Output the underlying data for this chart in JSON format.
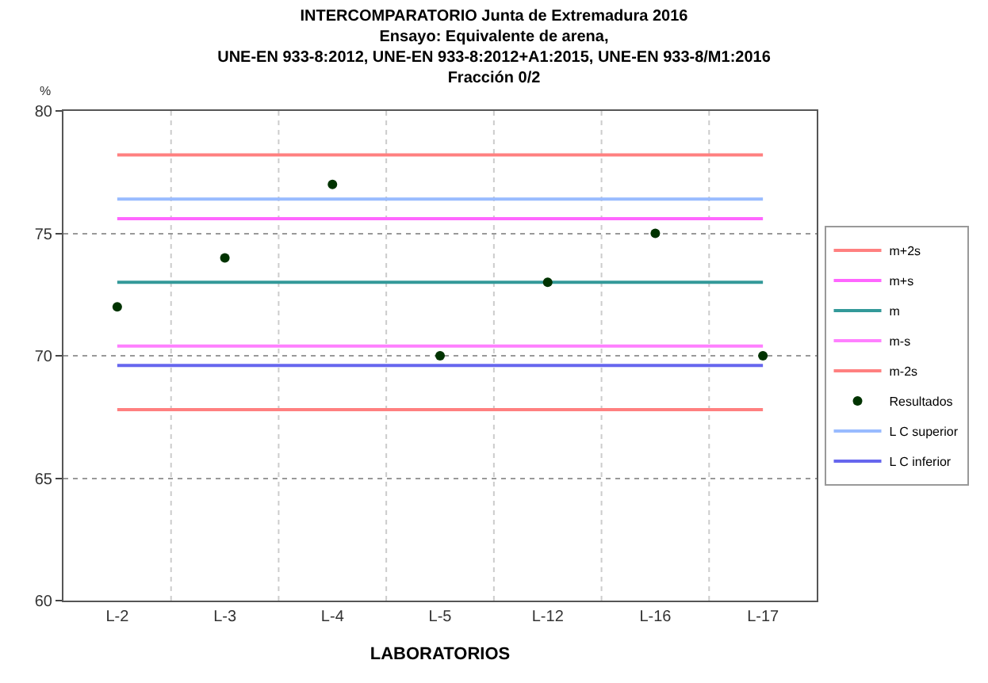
{
  "chart_data": {
    "type": "line",
    "title": "INTERCOMPARATORIO Junta de Extremadura 2016\nEnsayo: Equivalente de arena,\nUNE-EN 933-8:2012, UNE-EN 933-8:2012+A1:2015, UNE-EN 933-8/M1:2016\nFracción 0/2",
    "ylabel": "%",
    "xlabel": "LABORATORIOS",
    "categories": [
      "L-2",
      "L-3",
      "L-4",
      "L-5",
      "L-12",
      "L-16",
      "L-17"
    ],
    "series": [
      {
        "name": "m+2s",
        "color": "#ff8080",
        "values": [
          78.2,
          78.2,
          78.2,
          78.2,
          78.2,
          78.2,
          78.2
        ]
      },
      {
        "name": "m+s",
        "color": "#ff66ff",
        "values": [
          75.6,
          75.6,
          75.6,
          75.6,
          75.6,
          75.6,
          75.6
        ]
      },
      {
        "name": "m",
        "color": "#339999",
        "values": [
          73.0,
          73.0,
          73.0,
          73.0,
          73.0,
          73.0,
          73.0
        ]
      },
      {
        "name": "m-s",
        "color": "#ff80ff",
        "values": [
          70.4,
          70.4,
          70.4,
          70.4,
          70.4,
          70.4,
          70.4
        ]
      },
      {
        "name": "m-2s",
        "color": "#ff8080",
        "values": [
          67.8,
          67.8,
          67.8,
          67.8,
          67.8,
          67.8,
          67.8
        ]
      },
      {
        "name": "Resultados",
        "type": "scatter",
        "marker": "circle",
        "color": "#003300",
        "values": [
          72,
          74,
          77,
          70,
          73,
          75,
          70
        ]
      },
      {
        "name": "L C superior",
        "color": "#99bbff",
        "values": [
          76.4,
          76.4,
          76.4,
          76.4,
          76.4,
          76.4,
          76.4
        ]
      },
      {
        "name": "L C inferior",
        "color": "#6666ee",
        "values": [
          69.6,
          69.6,
          69.6,
          69.6,
          69.6,
          69.6,
          69.6
        ]
      }
    ],
    "ylim": [
      60,
      80
    ],
    "yticks": [
      60,
      65,
      70,
      75,
      80
    ],
    "grid": true,
    "legend": "right",
    "line_style": "solid"
  }
}
